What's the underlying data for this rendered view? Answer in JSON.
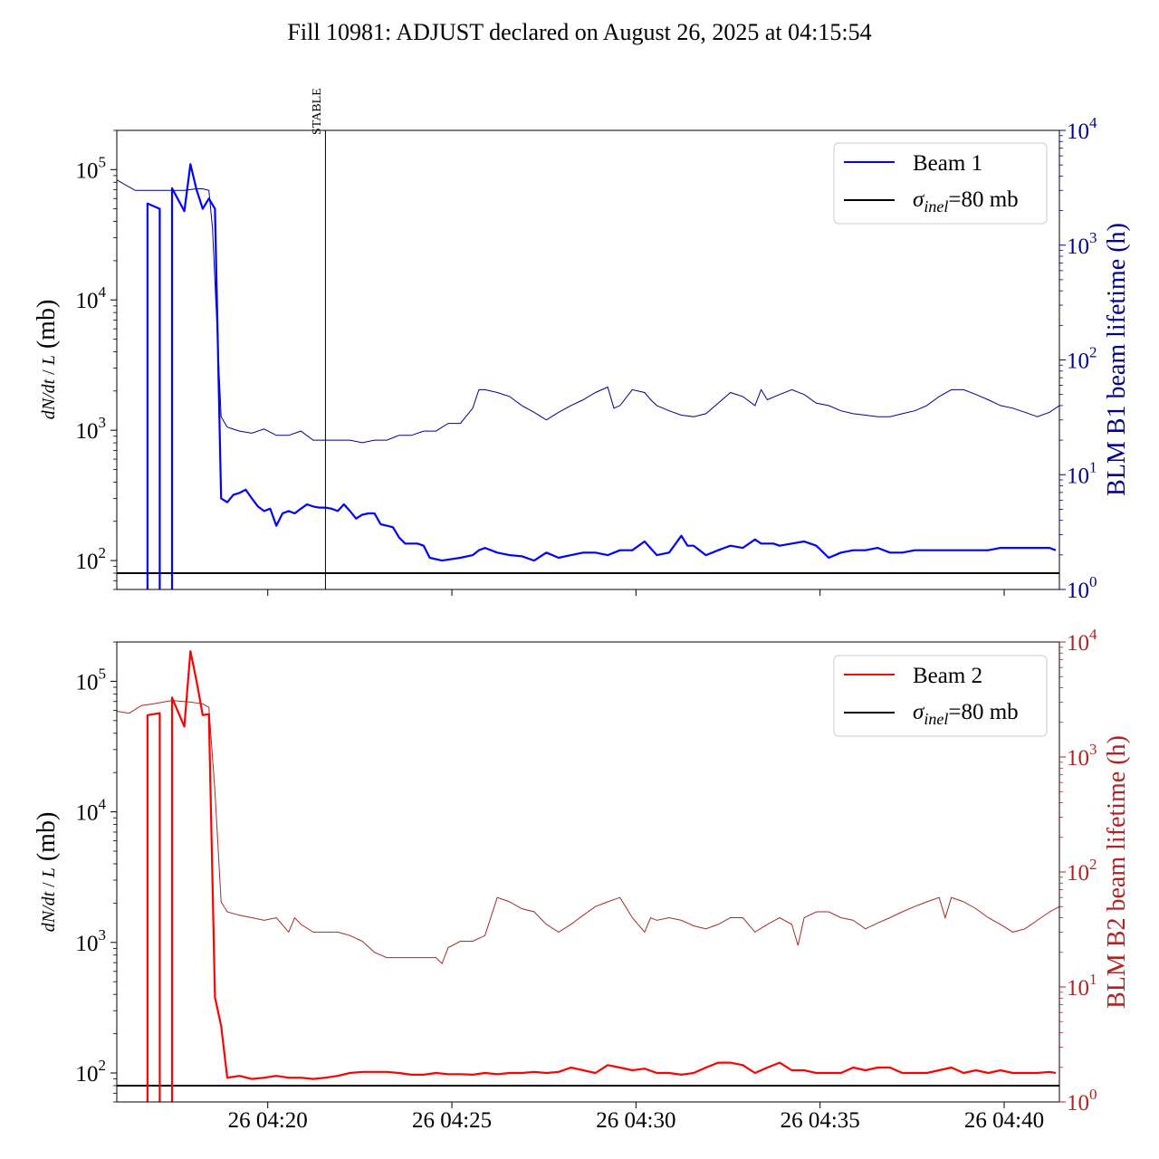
{
  "title": "Fill 10981: ADJUST declared on August 26, 2025 at 04:15:54",
  "marker_label": "STABLE",
  "colors": {
    "beam1": "#0000ff",
    "beam1_lifetime": "#00008b",
    "beam1_axis": "#00008b",
    "beam2": "#ff0000",
    "beam2_lifetime": "#a52a2a",
    "beam2_axis": "#b22222",
    "reference": "#000000"
  },
  "chart_data": [
    {
      "type": "line",
      "panel": "top",
      "title": "",
      "ylabel_left": "dN/dt / L (mb)",
      "ylabel_right": "BLM B1 beam lifetime (h)",
      "yscale": "log",
      "ylim": [
        60,
        200000
      ],
      "y2lim": [
        1,
        10000
      ],
      "xlim": [
        "04:15:54",
        "04:41:30"
      ],
      "x_tick_labels": [],
      "y_tick_labels": [
        "10^2",
        "10^3",
        "10^4",
        "10^5"
      ],
      "y2_tick_labels": [
        "10^0",
        "10^1",
        "10^2",
        "10^3",
        "10^4"
      ],
      "legend": [
        "Beam 1",
        "σinel=80 mb"
      ],
      "legend_position": "upper right",
      "stable_marker_time": "04:21:34",
      "reference_line": {
        "name": "σinel=80 mb",
        "value": 80
      },
      "series": [
        {
          "name": "Beam 1",
          "axis": "left",
          "x": [
            "04:16:44",
            "04:16:44",
            "04:17:04",
            "04:17:04",
            "04:17:24",
            "04:17:24",
            "04:17:44",
            "04:17:54",
            "04:18:04",
            "04:18:14",
            "04:18:24",
            "04:18:34",
            "04:18:44",
            "04:18:54",
            "04:19:04",
            "04:19:14",
            "04:19:24",
            "04:19:34",
            "04:19:44",
            "04:19:54",
            "04:20:04",
            "04:20:14",
            "04:20:24",
            "04:20:34",
            "04:20:44",
            "04:20:54",
            "04:21:04",
            "04:21:14",
            "04:21:24",
            "04:21:34",
            "04:21:44",
            "04:21:54",
            "04:22:04",
            "04:22:14",
            "04:22:24",
            "04:22:34",
            "04:22:44",
            "04:22:54",
            "04:23:04",
            "04:23:14",
            "04:23:24",
            "04:23:34",
            "04:23:44",
            "04:23:54",
            "04:24:04",
            "04:24:14",
            "04:24:24",
            "04:24:44",
            "04:25:14",
            "04:25:34",
            "04:25:44",
            "04:25:54",
            "04:26:14",
            "04:26:34",
            "04:26:54",
            "04:27:14",
            "04:27:34",
            "04:27:54",
            "04:28:14",
            "04:28:34",
            "04:28:54",
            "04:29:14",
            "04:29:34",
            "04:29:54",
            "04:30:14",
            "04:30:34",
            "04:30:54",
            "04:31:14",
            "04:31:24",
            "04:31:34",
            "04:31:54",
            "04:32:14",
            "04:32:24",
            "04:32:34",
            "04:32:54",
            "04:33:14",
            "04:33:24",
            "04:33:44",
            "04:33:54",
            "04:34:14",
            "04:34:34",
            "04:34:54",
            "04:35:14",
            "04:35:34",
            "04:35:54",
            "04:36:14",
            "04:36:34",
            "04:36:54",
            "04:37:14",
            "04:37:34",
            "04:37:54",
            "04:38:14",
            "04:38:34",
            "04:38:54",
            "04:39:14",
            "04:39:34",
            "04:39:54",
            "04:40:14",
            "04:40:34",
            "04:40:54",
            "04:41:14",
            "04:41:24"
          ],
          "y": [
            50,
            55000,
            50000,
            50,
            50,
            72000,
            48000,
            110000,
            70000,
            50000,
            60000,
            50000,
            300,
            280,
            320,
            330,
            350,
            300,
            260,
            240,
            250,
            185,
            230,
            240,
            230,
            250,
            270,
            260,
            255,
            255,
            250,
            240,
            270,
            240,
            210,
            225,
            230,
            230,
            190,
            185,
            180,
            150,
            135,
            135,
            135,
            130,
            105,
            100,
            105,
            110,
            120,
            125,
            115,
            110,
            108,
            100,
            115,
            105,
            110,
            115,
            115,
            110,
            120,
            120,
            140,
            110,
            115,
            155,
            130,
            130,
            110,
            120,
            125,
            130,
            125,
            145,
            135,
            135,
            130,
            135,
            140,
            130,
            105,
            115,
            120,
            120,
            125,
            115,
            115,
            120,
            120,
            120,
            120,
            120,
            120,
            120,
            125,
            125,
            125,
            125,
            125,
            120
          ],
          "ignore_note": ""
        },
        {
          "name": "",
          "axis": "right",
          "x": [
            "04:15:54",
            "04:16:24",
            "04:17:04",
            "04:17:44",
            "04:18:04",
            "04:18:14",
            "04:18:24",
            "04:18:30",
            "04:18:44",
            "04:18:54",
            "04:19:14",
            "04:19:34",
            "04:19:54",
            "04:20:14",
            "04:20:34",
            "04:20:54",
            "04:21:14",
            "04:21:34",
            "04:21:54",
            "04:22:14",
            "04:22:34",
            "04:22:54",
            "04:23:14",
            "04:23:34",
            "04:23:54",
            "04:24:14",
            "04:24:34",
            "04:24:54",
            "04:25:14",
            "04:25:34",
            "04:25:44",
            "04:25:54",
            "04:26:14",
            "04:26:34",
            "04:26:54",
            "04:27:14",
            "04:27:34",
            "04:27:54",
            "04:28:14",
            "04:28:34",
            "04:28:54",
            "04:29:14",
            "04:29:24",
            "04:29:34",
            "04:29:54",
            "04:30:14",
            "04:30:24",
            "04:30:34",
            "04:30:54",
            "04:31:14",
            "04:31:34",
            "04:31:54",
            "04:32:14",
            "04:32:34",
            "04:32:54",
            "04:33:14",
            "04:33:24",
            "04:33:34",
            "04:33:54",
            "04:34:14",
            "04:34:34",
            "04:34:54",
            "04:35:14",
            "04:35:34",
            "04:35:54",
            "04:36:14",
            "04:36:34",
            "04:36:54",
            "04:37:14",
            "04:37:34",
            "04:37:54",
            "04:38:14",
            "04:38:34",
            "04:38:54",
            "04:39:14",
            "04:39:34",
            "04:39:54",
            "04:40:14",
            "04:40:34",
            "04:40:54",
            "04:41:14",
            "04:41:30"
          ],
          "y": [
            3700,
            3000,
            3000,
            3000,
            3100,
            3100,
            3000,
            1400,
            32,
            26,
            24,
            23,
            25,
            22,
            22,
            24,
            20,
            20,
            20,
            20,
            19,
            20,
            20,
            22,
            22,
            24,
            24,
            28,
            28,
            38,
            55,
            55,
            52,
            48,
            40,
            35,
            30,
            35,
            40,
            45,
            52,
            58,
            38,
            40,
            55,
            52,
            45,
            40,
            36,
            33,
            32,
            34,
            42,
            52,
            48,
            40,
            55,
            45,
            50,
            55,
            50,
            42,
            40,
            36,
            34,
            33,
            32,
            32,
            34,
            36,
            40,
            48,
            55,
            55,
            50,
            45,
            40,
            38,
            35,
            32,
            35,
            40
          ],
          "ignore_note": ""
        }
      ]
    },
    {
      "type": "line",
      "panel": "bottom",
      "title": "",
      "ylabel_left": "dN/dt / L (mb)",
      "ylabel_right": "BLM B2 beam lifetime (h)",
      "yscale": "log",
      "ylim": [
        60,
        200000
      ],
      "y2lim": [
        1,
        10000
      ],
      "xlim": [
        "04:15:54",
        "04:41:30"
      ],
      "x_tick_labels": [
        "26 04:20",
        "26 04:25",
        "26 04:30",
        "26 04:35",
        "26 04:40"
      ],
      "y_tick_labels": [
        "10^2",
        "10^3",
        "10^4",
        "10^5"
      ],
      "y2_tick_labels": [
        "10^0",
        "10^1",
        "10^2",
        "10^3",
        "10^4"
      ],
      "legend": [
        "Beam 2",
        "σinel=80 mb"
      ],
      "legend_position": "upper right",
      "reference_line": {
        "name": "σinel=80 mb",
        "value": 80
      },
      "series": [
        {
          "name": "Beam 2",
          "axis": "left",
          "x": [
            "04:16:44",
            "04:16:44",
            "04:17:04",
            "04:17:04",
            "04:17:24",
            "04:17:24",
            "04:17:44",
            "04:17:54",
            "04:18:04",
            "04:18:14",
            "04:18:24",
            "04:18:34",
            "04:18:44",
            "04:18:54",
            "04:19:14",
            "04:19:34",
            "04:19:54",
            "04:20:14",
            "04:20:34",
            "04:20:54",
            "04:21:14",
            "04:21:34",
            "04:21:54",
            "04:22:14",
            "04:22:34",
            "04:22:54",
            "04:23:14",
            "04:23:34",
            "04:23:54",
            "04:24:14",
            "04:24:34",
            "04:24:54",
            "04:25:14",
            "04:25:34",
            "04:25:54",
            "04:26:14",
            "04:26:34",
            "04:26:54",
            "04:27:14",
            "04:27:34",
            "04:27:54",
            "04:28:14",
            "04:28:34",
            "04:28:54",
            "04:29:14",
            "04:29:34",
            "04:29:54",
            "04:30:14",
            "04:30:34",
            "04:30:54",
            "04:31:14",
            "04:31:34",
            "04:31:54",
            "04:32:14",
            "04:32:34",
            "04:32:54",
            "04:33:14",
            "04:33:34",
            "04:33:54",
            "04:34:14",
            "04:34:34",
            "04:34:54",
            "04:35:14",
            "04:35:34",
            "04:35:54",
            "04:36:14",
            "04:36:34",
            "04:36:54",
            "04:37:14",
            "04:37:34",
            "04:37:54",
            "04:38:14",
            "04:38:34",
            "04:38:54",
            "04:39:14",
            "04:39:34",
            "04:39:54",
            "04:40:14",
            "04:40:34",
            "04:40:54",
            "04:41:14",
            "04:41:24"
          ],
          "y": [
            50,
            55000,
            57000,
            50,
            50,
            75000,
            45000,
            170000,
            100000,
            55000,
            56000,
            380,
            230,
            92,
            95,
            90,
            92,
            95,
            92,
            92,
            90,
            92,
            95,
            100,
            102,
            102,
            102,
            100,
            97,
            97,
            100,
            98,
            98,
            97,
            100,
            98,
            100,
            100,
            102,
            100,
            102,
            110,
            105,
            100,
            115,
            110,
            105,
            108,
            100,
            100,
            97,
            100,
            110,
            120,
            120,
            115,
            100,
            110,
            120,
            105,
            105,
            100,
            100,
            100,
            110,
            105,
            110,
            110,
            100,
            100,
            100,
            105,
            110,
            100,
            105,
            100,
            105,
            100,
            100,
            100,
            102,
            100
          ],
          "ignore_note": ""
        },
        {
          "name": "",
          "axis": "right",
          "x": [
            "04:15:54",
            "04:16:14",
            "04:16:34",
            "04:16:54",
            "04:17:24",
            "04:17:54",
            "04:18:14",
            "04:18:24",
            "04:18:34",
            "04:18:44",
            "04:18:54",
            "04:19:14",
            "04:19:34",
            "04:19:54",
            "04:20:14",
            "04:20:34",
            "04:20:44",
            "04:20:54",
            "04:21:14",
            "04:21:34",
            "04:21:54",
            "04:22:14",
            "04:22:34",
            "04:22:54",
            "04:23:14",
            "04:23:34",
            "04:23:54",
            "04:24:14",
            "04:24:34",
            "04:24:44",
            "04:24:54",
            "04:25:14",
            "04:25:34",
            "04:25:54",
            "04:26:14",
            "04:26:34",
            "04:26:54",
            "04:27:14",
            "04:27:34",
            "04:27:54",
            "04:28:14",
            "04:28:34",
            "04:28:54",
            "04:29:14",
            "04:29:34",
            "04:29:54",
            "04:30:14",
            "04:30:24",
            "04:30:34",
            "04:30:54",
            "04:31:14",
            "04:31:34",
            "04:31:54",
            "04:32:14",
            "04:32:34",
            "04:32:54",
            "04:33:14",
            "04:33:34",
            "04:33:54",
            "04:34:14",
            "04:34:24",
            "04:34:34",
            "04:34:54",
            "04:35:14",
            "04:35:34",
            "04:35:54",
            "04:36:14",
            "04:36:34",
            "04:36:54",
            "04:37:14",
            "04:37:34",
            "04:37:54",
            "04:38:14",
            "04:38:24",
            "04:38:34",
            "04:38:54",
            "04:39:14",
            "04:39:34",
            "04:39:54",
            "04:40:14",
            "04:40:34",
            "04:40:54",
            "04:41:14",
            "04:41:30"
          ],
          "y": [
            2500,
            2400,
            2800,
            2900,
            3100,
            3000,
            2900,
            2700,
            500,
            55,
            45,
            42,
            40,
            38,
            40,
            30,
            40,
            35,
            30,
            30,
            30,
            28,
            25,
            20,
            18,
            18,
            18,
            18,
            18,
            16,
            22,
            25,
            25,
            28,
            60,
            55,
            48,
            45,
            35,
            30,
            35,
            42,
            50,
            55,
            60,
            40,
            30,
            40,
            38,
            40,
            38,
            34,
            32,
            35,
            40,
            40,
            30,
            35,
            40,
            35,
            23,
            40,
            45,
            45,
            40,
            38,
            32,
            36,
            40,
            45,
            50,
            55,
            60,
            40,
            60,
            55,
            48,
            40,
            35,
            30,
            32,
            38,
            45,
            50
          ],
          "ignore_note": ""
        }
      ]
    }
  ]
}
